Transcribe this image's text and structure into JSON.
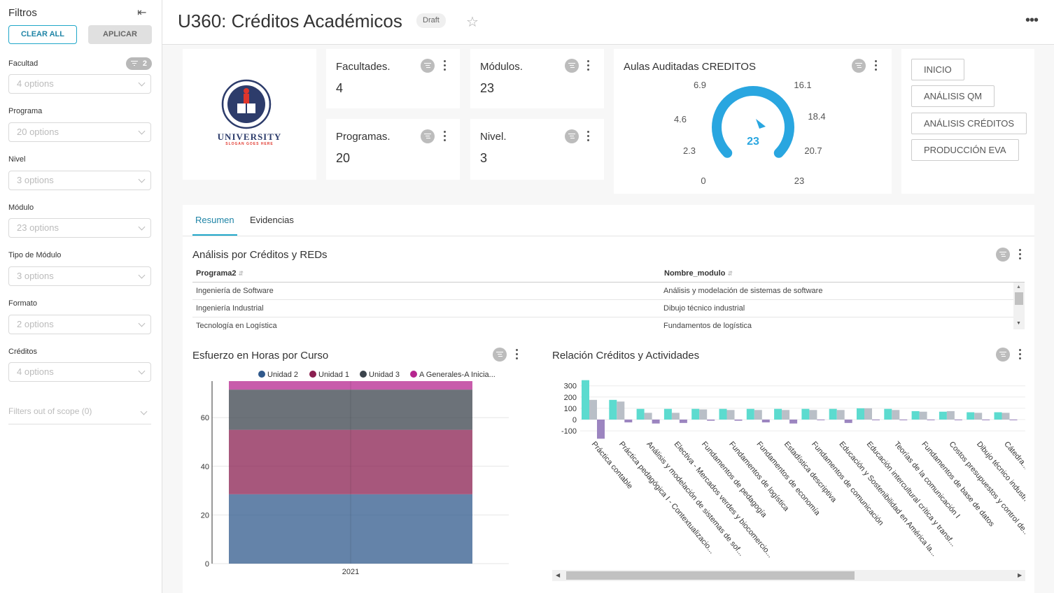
{
  "sidebar": {
    "title": "Filtros",
    "clear_label": "CLEAR ALL",
    "apply_label": "APLICAR",
    "facultad_count": "2",
    "filters": [
      {
        "label": "Facultad",
        "placeholder": "4 options"
      },
      {
        "label": "Programa",
        "placeholder": "20 options"
      },
      {
        "label": "Nivel",
        "placeholder": "3 options"
      },
      {
        "label": "Módulo",
        "placeholder": "23 options"
      },
      {
        "label": "Tipo de Módulo",
        "placeholder": "3 options"
      },
      {
        "label": "Formato",
        "placeholder": "2 options"
      },
      {
        "label": "Créditos",
        "placeholder": "4 options"
      }
    ],
    "out_of_scope": "Filters out of scope (0)"
  },
  "header": {
    "title": "U360: Créditos Académicos",
    "badge": "Draft"
  },
  "logo": {
    "name": "UNIVERSITY",
    "slogan": "SLOGAN GOES HERE"
  },
  "kpis": [
    {
      "title": "Facultades.",
      "value": "4"
    },
    {
      "title": "Módulos.",
      "value": "23"
    },
    {
      "title": "Programas.",
      "value": "20"
    },
    {
      "title": "Nivel.",
      "value": "3"
    }
  ],
  "gauge": {
    "title": "Aulas Auditadas CREDITOS",
    "value": 23,
    "value_label": "23",
    "min": 0,
    "max": 23,
    "ticks": [
      "0",
      "2.3",
      "4.6",
      "6.9",
      "16.1",
      "18.4",
      "20.7",
      "23"
    ],
    "color": "#29a6e0"
  },
  "nav_buttons": [
    "INICIO",
    "ANÁLISIS QM",
    "ANÁLISIS CRÉDITOS",
    "PRODUCCIÓN EVA"
  ],
  "tabs": [
    "Resumen",
    "Evidencias"
  ],
  "table": {
    "title": "Análisis por Créditos y REDs",
    "columns": [
      "Programa2",
      "Nombre_modulo"
    ],
    "rows": [
      [
        "Ingeniería de Software",
        "Análisis y modelación de sistemas de software"
      ],
      [
        "Ingeniería Industrial",
        "Dibujo técnico industrial"
      ],
      [
        "Tecnología en Logística",
        "Fundamentos de logística"
      ]
    ]
  },
  "chart_data": [
    {
      "type": "bar",
      "title": "Esfuerzo en Horas por Curso",
      "stacked": true,
      "categories": [
        "2021"
      ],
      "ylim": [
        0,
        75
      ],
      "yticks": [
        "0",
        "20",
        "40",
        "60"
      ],
      "series": [
        {
          "name": "Unidad 2",
          "values": [
            28.5
          ],
          "color": "#30598c"
        },
        {
          "name": "Unidad 1",
          "values": [
            26.5
          ],
          "color": "#8a1f50"
        },
        {
          "name": "Unidad 3",
          "values": [
            16.5
          ],
          "color": "#3b434c"
        },
        {
          "name": "A Generales-A Inicia...",
          "values": [
            4.5
          ],
          "color": "#b6268f"
        }
      ],
      "legend": "top"
    },
    {
      "type": "bar",
      "title": "Relación Créditos y Actividades",
      "ylim": [
        -150,
        330
      ],
      "yticks": [
        "300",
        "200",
        "100",
        "0",
        "-100"
      ],
      "categories": [
        "Práctica contable",
        "Práctica pedagógica I - Contextualizacio...",
        "Análisis y modelación de sistemas de sof...",
        "Electiva - Mercados verdes y biocomercio...",
        "Fundamentos de pedagogía",
        "Fundamentos de logística",
        "Fundamentos de economía",
        "Estadística descriptiva",
        "Fundamentos de comunicación",
        "Educación y Sostenibilidad en América la...",
        "Educación intercultural crítica y transf...",
        "Teorías de la comunicación I",
        "Fundamentos de base de datos",
        "Costos presupuestos y control de...",
        "Dibujo técnico industrial",
        "Cátedra..."
      ],
      "series": [
        {
          "values": [
            350,
            175,
            95,
            95,
            95,
            95,
            95,
            95,
            95,
            95,
            100,
            95,
            75,
            70,
            65,
            65
          ],
          "color": "#5cdbcf"
        },
        {
          "values": [
            175,
            160,
            60,
            60,
            90,
            85,
            85,
            85,
            85,
            85,
            100,
            85,
            70,
            75,
            60,
            60
          ],
          "color": "#b9bfc7"
        },
        {
          "values": [
            -170,
            -25,
            -35,
            -30,
            -10,
            -10,
            -25,
            -35,
            -5,
            -30,
            -5,
            -5,
            -5,
            -5,
            -5,
            -5
          ],
          "color": "#9c85c0"
        }
      ]
    }
  ]
}
